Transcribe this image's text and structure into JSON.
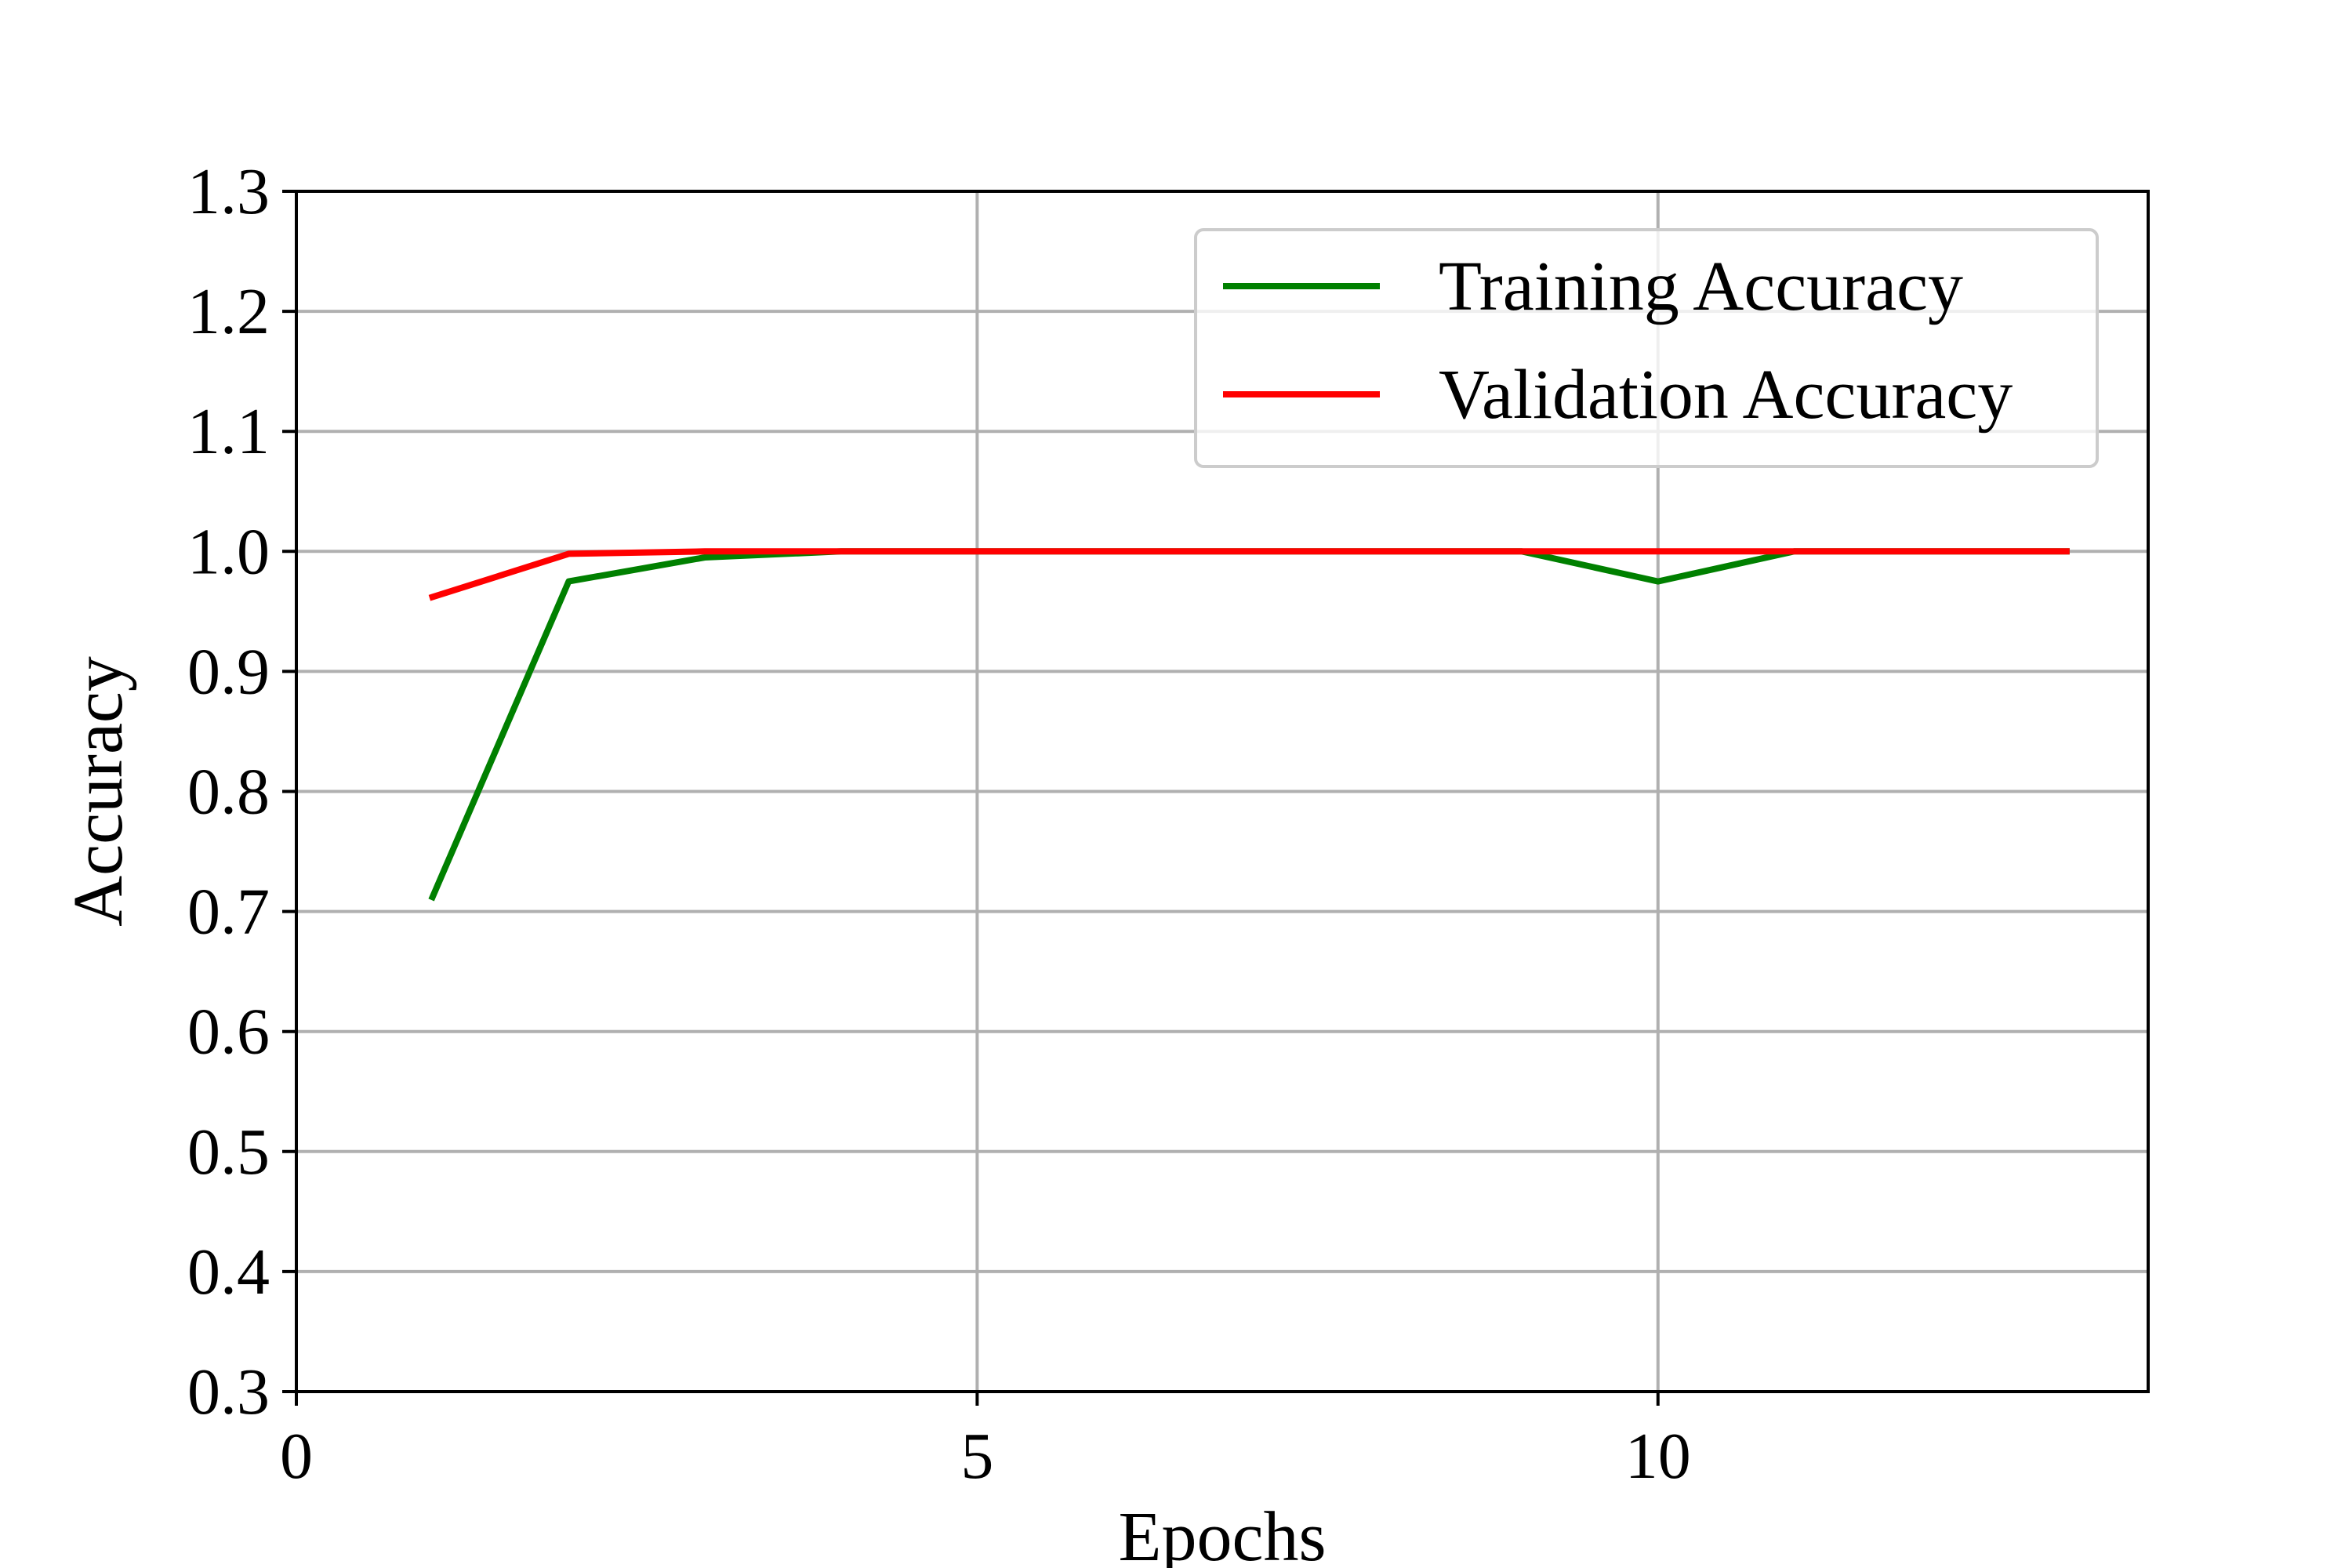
{
  "chart_data": {
    "type": "line",
    "title": "",
    "xlabel": "Epochs",
    "ylabel": "Accuracy",
    "xlim": [
      0,
      13.6
    ],
    "ylim": [
      0.3,
      1.3
    ],
    "xticks": [
      0,
      5,
      10
    ],
    "yticks": [
      0.3,
      0.4,
      0.5,
      0.6,
      0.7,
      0.8,
      0.9,
      1.0,
      1.1,
      1.2,
      1.3
    ],
    "x_tick_labels": [
      "0",
      "5",
      "10"
    ],
    "y_tick_labels": [
      "0.3",
      "0.4",
      "0.5",
      "0.6",
      "0.7",
      "0.8",
      "0.9",
      "1.0",
      "1.1",
      "1.2",
      "1.3"
    ],
    "grid": true,
    "legend_position": "top-right",
    "x": [
      1,
      2,
      3,
      4,
      5,
      6,
      7,
      8,
      9,
      10,
      11,
      12,
      13
    ],
    "series": [
      {
        "name": "Training Accuracy",
        "color": "#008000",
        "values": [
          0.712,
          0.975,
          0.995,
          1.0,
          1.0,
          1.0,
          1.0,
          1.0,
          1.0,
          0.975,
          1.0,
          1.0,
          1.0
        ]
      },
      {
        "name": "Validation Accuracy",
        "color": "#ff0000",
        "values": [
          0.962,
          0.998,
          1.0,
          1.0,
          1.0,
          1.0,
          1.0,
          1.0,
          1.0,
          1.0,
          1.0,
          1.0,
          1.0
        ]
      }
    ]
  }
}
